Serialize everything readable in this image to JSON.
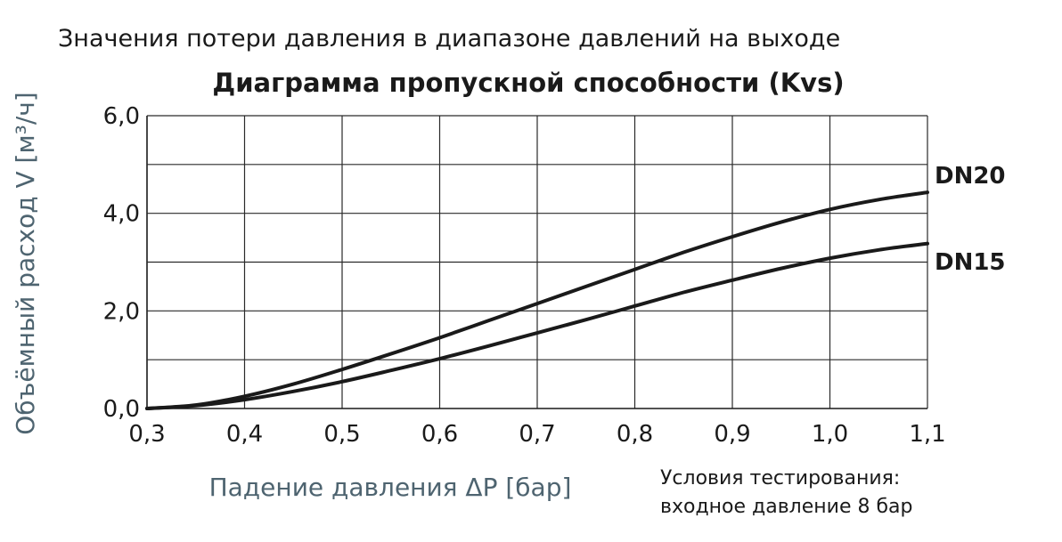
{
  "chart_data": {
    "type": "line",
    "subtitle": "Значения потери давления в диапазоне давлений на выходе",
    "title": "Диаграмма пропускной способности (Kvs)",
    "xlabel": "Падение давления ΔP [бар]",
    "ylabel": "Объёмный расход V [м³/ч]",
    "xlim": [
      0.3,
      1.1
    ],
    "ylim": [
      0,
      6.0
    ],
    "x_ticks": [
      0.3,
      0.4,
      0.5,
      0.6,
      0.7,
      0.8,
      0.9,
      1.0,
      1.1
    ],
    "x_tick_labels": [
      "0,3",
      "0,4",
      "0,5",
      "0,6",
      "0,7",
      "0,8",
      "0,9",
      "1,0",
      "1,1"
    ],
    "y_ticks": [
      0,
      2,
      4,
      6
    ],
    "y_tick_labels": [
      "0,0",
      "2,0",
      "4,0",
      "6,0"
    ],
    "y_minor_gridlines": [
      1,
      3,
      5
    ],
    "grid": true,
    "series": [
      {
        "name": "DN20",
        "x": [
          0.3,
          0.35,
          0.4,
          0.45,
          0.5,
          0.55,
          0.6,
          0.65,
          0.7,
          0.75,
          0.8,
          0.85,
          0.9,
          0.95,
          1.0,
          1.05,
          1.1
        ],
        "y": [
          0.0,
          0.07,
          0.25,
          0.5,
          0.8,
          1.12,
          1.45,
          1.8,
          2.15,
          2.5,
          2.85,
          3.2,
          3.52,
          3.82,
          4.08,
          4.28,
          4.43
        ]
      },
      {
        "name": "DN15",
        "x": [
          0.3,
          0.35,
          0.4,
          0.45,
          0.5,
          0.55,
          0.6,
          0.65,
          0.7,
          0.75,
          0.8,
          0.85,
          0.9,
          0.95,
          1.0,
          1.05,
          1.1
        ],
        "y": [
          0.0,
          0.06,
          0.18,
          0.35,
          0.55,
          0.78,
          1.02,
          1.28,
          1.55,
          1.82,
          2.1,
          2.38,
          2.63,
          2.87,
          3.08,
          3.25,
          3.38
        ]
      }
    ],
    "note_lines": [
      "Условия тестирования:",
      "входное давление 8 бар"
    ]
  }
}
